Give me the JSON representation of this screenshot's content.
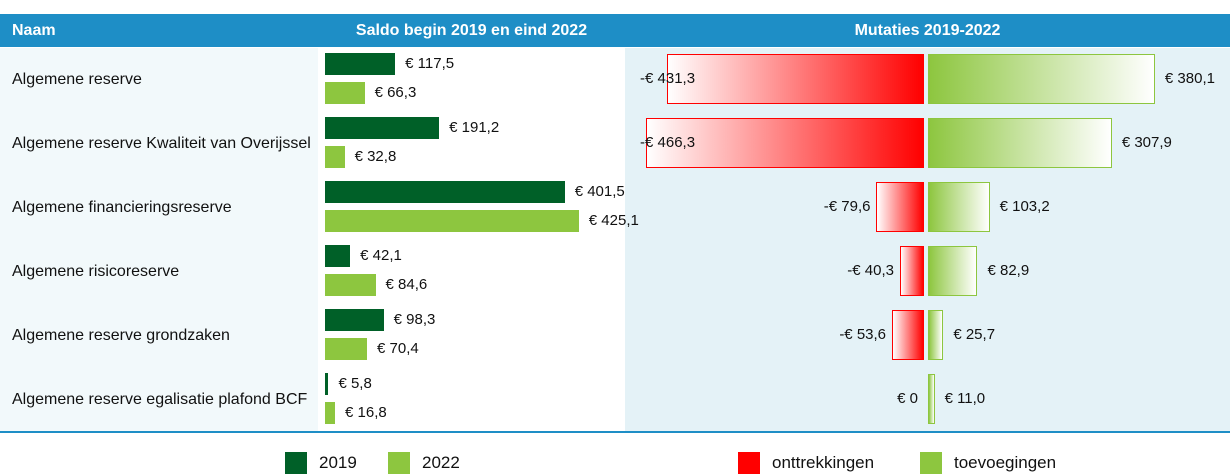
{
  "header": {
    "name": "Naam"
  },
  "chart_data": [
    {
      "type": "bar",
      "orientation": "horizontal",
      "title": "Saldo begin 2019 en eind 2022",
      "categories": [
        "Algemene reserve",
        "Algemene reserve Kwaliteit van Overijssel",
        "Algemene financieringsreserve",
        "Algemene risicoreserve",
        "Algemene reserve grondzaken",
        "Algemene reserve egalisatie plafond BCF"
      ],
      "series": [
        {
          "name": "2019",
          "color": "#006028",
          "values": [
            117.5,
            191.2,
            401.5,
            42.1,
            98.3,
            5.8
          ],
          "value_labels": [
            "€ 117,5",
            "€ 191,2",
            "€ 401,5",
            "€ 42,1",
            "€ 98,3",
            "€ 5,8"
          ]
        },
        {
          "name": "2022",
          "color": "#8dc63f",
          "values": [
            66.3,
            32.8,
            425.1,
            84.6,
            70.4,
            16.8
          ],
          "value_labels": [
            "€ 66,3",
            "€ 32,8",
            "€ 425,1",
            "€ 84,6",
            "€ 70,4",
            "€ 16,8"
          ]
        }
      ]
    },
    {
      "type": "diverging-bar",
      "title": "Mutaties 2019-2022",
      "series": [
        {
          "name": "onttrekkingen",
          "color": "#ff0000",
          "values": [
            -431.3,
            -466.3,
            -79.6,
            -40.3,
            -53.6,
            0
          ],
          "value_labels": [
            "-€ 431,3",
            "-€ 466,3",
            "-€ 79,6",
            "-€ 40,3",
            "-€ 53,6",
            "€ 0"
          ]
        },
        {
          "name": "toevoegingen",
          "color": "#8dc63f",
          "values": [
            380.1,
            307.9,
            103.2,
            82.9,
            25.7,
            11.0
          ],
          "value_labels": [
            "€ 380,1",
            "€ 307,9",
            "€ 103,2",
            "€ 82,9",
            "€ 25,7",
            "€ 11,0"
          ]
        }
      ]
    }
  ]
}
